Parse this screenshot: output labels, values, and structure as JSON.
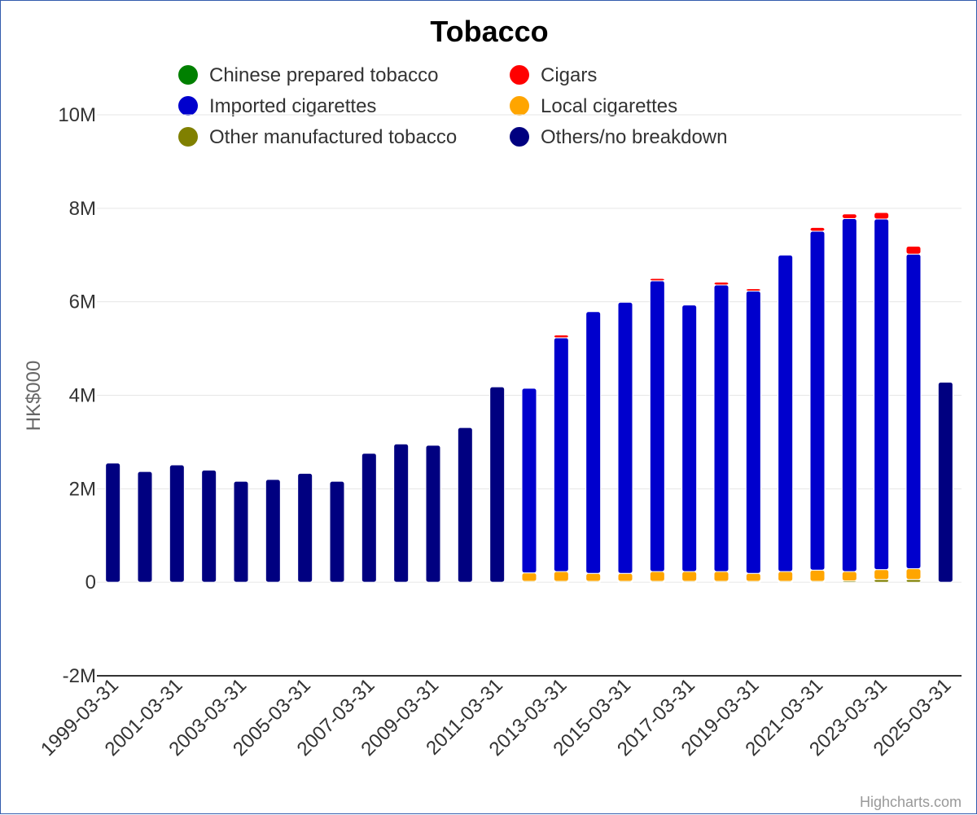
{
  "chart_data": {
    "type": "bar",
    "stacked": true,
    "title": "Tobacco",
    "ylabel": "HK$000",
    "xlabel": "",
    "credits": "Highcharts.com",
    "ylim": [
      -2000000,
      10000000
    ],
    "yticks": [
      -2000000,
      0,
      2000000,
      4000000,
      6000000,
      8000000,
      10000000
    ],
    "ytick_labels": [
      "-2M",
      "0",
      "2M",
      "4M",
      "6M",
      "8M",
      "10M"
    ],
    "legend_position": "top",
    "grid": true,
    "categories": [
      "1999-03-31",
      "2000-03-31",
      "2001-03-31",
      "2002-03-31",
      "2003-03-31",
      "2004-03-31",
      "2005-03-31",
      "2006-03-31",
      "2007-03-31",
      "2008-03-31",
      "2009-03-31",
      "2010-03-31",
      "2011-03-31",
      "2012-03-31",
      "2013-03-31",
      "2014-03-31",
      "2015-03-31",
      "2016-03-31",
      "2017-03-31",
      "2018-03-31",
      "2019-03-31",
      "2020-03-31",
      "2021-03-31",
      "2022-03-31",
      "2023-03-31",
      "2024-03-31",
      "2025-03-31"
    ],
    "xtick_labels": [
      "1999-03-31",
      "2001-03-31",
      "2003-03-31",
      "2005-03-31",
      "2007-03-31",
      "2009-03-31",
      "2011-03-31",
      "2013-03-31",
      "2015-03-31",
      "2017-03-31",
      "2019-03-31",
      "2021-03-31",
      "2023-03-31",
      "2025-03-31"
    ],
    "series": [
      {
        "name": "Chinese prepared tobacco",
        "color": "#008000",
        "values": [
          0,
          0,
          0,
          0,
          0,
          0,
          0,
          0,
          0,
          0,
          0,
          0,
          0,
          0,
          0,
          0,
          0,
          0,
          0,
          0,
          0,
          0,
          0,
          0,
          0,
          0,
          0
        ]
      },
      {
        "name": "Other manufactured tobacco",
        "color": "#808000",
        "values": [
          0,
          0,
          0,
          0,
          0,
          0,
          0,
          0,
          0,
          0,
          0,
          0,
          0,
          20000,
          20000,
          20000,
          20000,
          20000,
          20000,
          20000,
          20000,
          20000,
          20000,
          30000,
          60000,
          60000,
          0
        ]
      },
      {
        "name": "Local cigarettes",
        "color": "#ffa500",
        "values": [
          0,
          0,
          0,
          0,
          0,
          0,
          0,
          0,
          0,
          0,
          0,
          0,
          0,
          180000,
          210000,
          170000,
          170000,
          210000,
          210000,
          210000,
          170000,
          210000,
          240000,
          200000,
          210000,
          230000,
          0
        ]
      },
      {
        "name": "Imported cigarettes",
        "color": "#0000cd",
        "values": [
          0,
          0,
          0,
          0,
          0,
          0,
          0,
          0,
          0,
          0,
          0,
          0,
          0,
          3950000,
          5000000,
          5600000,
          5800000,
          6220000,
          5700000,
          6130000,
          6040000,
          6770000,
          7250000,
          7550000,
          7500000,
          6730000,
          0
        ]
      },
      {
        "name": "Cigars",
        "color": "#ff0000",
        "values": [
          0,
          0,
          0,
          0,
          0,
          0,
          0,
          0,
          0,
          0,
          0,
          0,
          0,
          0,
          60000,
          0,
          0,
          50000,
          0,
          60000,
          50000,
          0,
          80000,
          100000,
          140000,
          170000,
          0
        ]
      },
      {
        "name": "Others/no breakdown",
        "color": "#000080",
        "values": [
          2550000,
          2370000,
          2510000,
          2400000,
          2160000,
          2200000,
          2330000,
          2160000,
          2760000,
          2960000,
          2930000,
          3310000,
          4180000,
          0,
          0,
          0,
          0,
          0,
          0,
          0,
          0,
          0,
          0,
          0,
          0,
          0,
          4280000
        ]
      }
    ],
    "legend_order": [
      "Chinese prepared tobacco",
      "Cigars",
      "Imported cigarettes",
      "Local cigarettes",
      "Other manufactured tobacco",
      "Others/no breakdown"
    ]
  }
}
